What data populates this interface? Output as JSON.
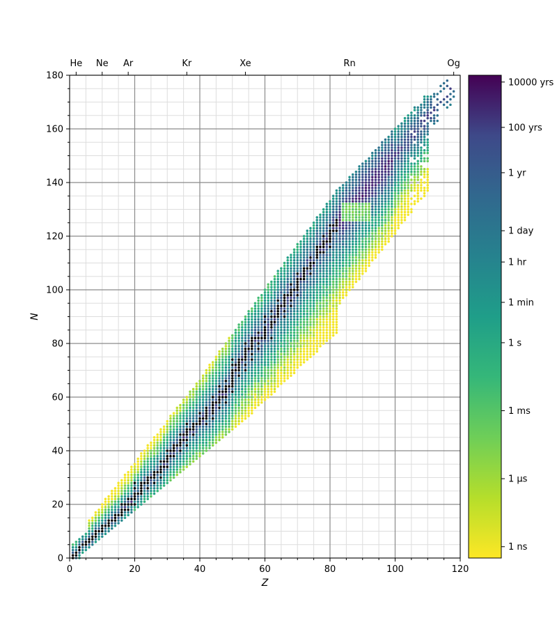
{
  "chart_data": {
    "type": "scatter",
    "title": "",
    "xlabel": "Z",
    "ylabel": "N",
    "xlim": [
      0,
      120
    ],
    "ylim": [
      0,
      180
    ],
    "x_ticks": [
      0,
      20,
      40,
      60,
      80,
      100,
      120
    ],
    "y_ticks": [
      0,
      20,
      40,
      60,
      80,
      100,
      120,
      140,
      160,
      180
    ],
    "x_minor_step": 5,
    "y_minor_step": 5,
    "grid": true,
    "top_axis": {
      "labels": [
        {
          "label": "He",
          "z": 2
        },
        {
          "label": "Ne",
          "z": 10
        },
        {
          "label": "Ar",
          "z": 18
        },
        {
          "label": "Kr",
          "z": 36
        },
        {
          "label": "Xe",
          "z": 54
        },
        {
          "label": "Rn",
          "z": 86
        },
        {
          "label": "Og",
          "z": 118
        }
      ]
    },
    "colorbar": {
      "colormap": "viridis_r",
      "scale": "log",
      "unit": "seconds",
      "range_log10": [
        -9.5,
        11.8
      ],
      "ticks": [
        {
          "label": "10000 yrs",
          "log10_seconds": 11.5
        },
        {
          "label": "100 yrs",
          "log10_seconds": 9.5
        },
        {
          "label": "1 yr",
          "log10_seconds": 7.5
        },
        {
          "label": "1 day",
          "log10_seconds": 4.94
        },
        {
          "label": "1 hr",
          "log10_seconds": 3.56
        },
        {
          "label": "1 min",
          "log10_seconds": 1.78
        },
        {
          "label": "1 s",
          "log10_seconds": 0
        },
        {
          "label": "1 ms",
          "log10_seconds": -3
        },
        {
          "label": "1 μs",
          "log10_seconds": -6
        },
        {
          "label": "1 ns",
          "log10_seconds": -9
        }
      ],
      "stable_color": "#000000"
    },
    "series": [
      {
        "description": "stable",
        "color": "#000000",
        "points_zn": [
          [
            1,
            0
          ],
          [
            1,
            1
          ],
          [
            2,
            1
          ],
          [
            2,
            2
          ],
          [
            3,
            3
          ],
          [
            3,
            4
          ],
          [
            4,
            5
          ],
          [
            5,
            5
          ],
          [
            5,
            6
          ],
          [
            6,
            6
          ],
          [
            6,
            7
          ],
          [
            7,
            7
          ],
          [
            7,
            8
          ],
          [
            8,
            8
          ],
          [
            8,
            9
          ],
          [
            8,
            10
          ],
          [
            9,
            10
          ],
          [
            10,
            10
          ],
          [
            10,
            11
          ],
          [
            10,
            12
          ],
          [
            11,
            12
          ],
          [
            12,
            12
          ],
          [
            12,
            13
          ],
          [
            12,
            14
          ],
          [
            13,
            14
          ],
          [
            14,
            14
          ],
          [
            14,
            15
          ],
          [
            14,
            16
          ],
          [
            15,
            16
          ],
          [
            16,
            16
          ],
          [
            16,
            17
          ],
          [
            16,
            18
          ],
          [
            16,
            20
          ],
          [
            17,
            18
          ],
          [
            17,
            20
          ],
          [
            18,
            18
          ],
          [
            18,
            20
          ],
          [
            18,
            22
          ],
          [
            19,
            20
          ],
          [
            19,
            22
          ],
          [
            20,
            20
          ],
          [
            20,
            22
          ],
          [
            20,
            23
          ],
          [
            20,
            24
          ],
          [
            20,
            26
          ],
          [
            20,
            28
          ],
          [
            21,
            24
          ],
          [
            22,
            24
          ],
          [
            22,
            25
          ],
          [
            22,
            26
          ],
          [
            22,
            27
          ],
          [
            22,
            28
          ],
          [
            23,
            28
          ],
          [
            24,
            26
          ],
          [
            24,
            28
          ],
          [
            24,
            29
          ],
          [
            24,
            30
          ],
          [
            25,
            30
          ],
          [
            26,
            28
          ],
          [
            26,
            30
          ],
          [
            26,
            31
          ],
          [
            26,
            32
          ],
          [
            27,
            32
          ],
          [
            28,
            30
          ],
          [
            28,
            32
          ],
          [
            28,
            33
          ],
          [
            28,
            34
          ],
          [
            28,
            36
          ],
          [
            29,
            34
          ],
          [
            29,
            36
          ],
          [
            30,
            34
          ],
          [
            30,
            36
          ],
          [
            30,
            37
          ],
          [
            30,
            38
          ],
          [
            30,
            40
          ],
          [
            31,
            38
          ],
          [
            31,
            40
          ],
          [
            32,
            38
          ],
          [
            32,
            40
          ],
          [
            32,
            41
          ],
          [
            32,
            42
          ],
          [
            33,
            42
          ],
          [
            34,
            40
          ],
          [
            34,
            42
          ],
          [
            34,
            43
          ],
          [
            34,
            44
          ],
          [
            34,
            46
          ],
          [
            35,
            44
          ],
          [
            35,
            46
          ],
          [
            36,
            42
          ],
          [
            36,
            44
          ],
          [
            36,
            46
          ],
          [
            36,
            47
          ],
          [
            36,
            48
          ],
          [
            36,
            50
          ],
          [
            37,
            48
          ],
          [
            38,
            46
          ],
          [
            38,
            48
          ],
          [
            38,
            49
          ],
          [
            38,
            50
          ],
          [
            39,
            50
          ],
          [
            40,
            50
          ],
          [
            40,
            51
          ],
          [
            40,
            52
          ],
          [
            40,
            54
          ],
          [
            41,
            52
          ],
          [
            42,
            50
          ],
          [
            42,
            52
          ],
          [
            42,
            53
          ],
          [
            42,
            54
          ],
          [
            42,
            55
          ],
          [
            42,
            56
          ],
          [
            44,
            52
          ],
          [
            44,
            54
          ],
          [
            44,
            55
          ],
          [
            44,
            56
          ],
          [
            44,
            57
          ],
          [
            44,
            58
          ],
          [
            44,
            60
          ],
          [
            45,
            58
          ],
          [
            46,
            56
          ],
          [
            46,
            58
          ],
          [
            46,
            59
          ],
          [
            46,
            60
          ],
          [
            46,
            62
          ],
          [
            46,
            64
          ],
          [
            47,
            60
          ],
          [
            47,
            62
          ],
          [
            48,
            58
          ],
          [
            48,
            60
          ],
          [
            48,
            62
          ],
          [
            48,
            63
          ],
          [
            48,
            64
          ],
          [
            48,
            66
          ],
          [
            49,
            64
          ],
          [
            50,
            62
          ],
          [
            50,
            64
          ],
          [
            50,
            65
          ],
          [
            50,
            66
          ],
          [
            50,
            67
          ],
          [
            50,
            68
          ],
          [
            50,
            69
          ],
          [
            50,
            70
          ],
          [
            50,
            72
          ],
          [
            50,
            74
          ],
          [
            51,
            70
          ],
          [
            51,
            72
          ],
          [
            52,
            68
          ],
          [
            52,
            70
          ],
          [
            52,
            71
          ],
          [
            52,
            72
          ],
          [
            52,
            73
          ],
          [
            52,
            74
          ],
          [
            53,
            74
          ],
          [
            54,
            70
          ],
          [
            54,
            72
          ],
          [
            54,
            74
          ],
          [
            54,
            75
          ],
          [
            54,
            76
          ],
          [
            54,
            77
          ],
          [
            54,
            78
          ],
          [
            54,
            80
          ],
          [
            55,
            78
          ],
          [
            56,
            74
          ],
          [
            56,
            76
          ],
          [
            56,
            78
          ],
          [
            56,
            79
          ],
          [
            56,
            80
          ],
          [
            56,
            81
          ],
          [
            56,
            82
          ],
          [
            57,
            82
          ],
          [
            58,
            78
          ],
          [
            58,
            80
          ],
          [
            58,
            82
          ],
          [
            58,
            84
          ],
          [
            59,
            82
          ],
          [
            60,
            82
          ],
          [
            60,
            83
          ],
          [
            60,
            84
          ],
          [
            60,
            85
          ],
          [
            60,
            86
          ],
          [
            60,
            88
          ],
          [
            60,
            90
          ],
          [
            62,
            82
          ],
          [
            62,
            86
          ],
          [
            62,
            87
          ],
          [
            62,
            88
          ],
          [
            62,
            90
          ],
          [
            62,
            92
          ],
          [
            63,
            88
          ],
          [
            63,
            90
          ],
          [
            64,
            90
          ],
          [
            64,
            91
          ],
          [
            64,
            92
          ],
          [
            64,
            93
          ],
          [
            64,
            94
          ],
          [
            64,
            96
          ],
          [
            65,
            94
          ],
          [
            66,
            90
          ],
          [
            66,
            92
          ],
          [
            66,
            94
          ],
          [
            66,
            95
          ],
          [
            66,
            96
          ],
          [
            66,
            97
          ],
          [
            66,
            98
          ],
          [
            67,
            98
          ],
          [
            68,
            94
          ],
          [
            68,
            96
          ],
          [
            68,
            98
          ],
          [
            68,
            99
          ],
          [
            68,
            100
          ],
          [
            68,
            102
          ],
          [
            69,
            100
          ],
          [
            70,
            98
          ],
          [
            70,
            100
          ],
          [
            70,
            101
          ],
          [
            70,
            102
          ],
          [
            70,
            103
          ],
          [
            70,
            104
          ],
          [
            70,
            106
          ],
          [
            71,
            104
          ],
          [
            72,
            104
          ],
          [
            72,
            105
          ],
          [
            72,
            106
          ],
          [
            72,
            107
          ],
          [
            72,
            108
          ],
          [
            73,
            108
          ],
          [
            74,
            106
          ],
          [
            74,
            108
          ],
          [
            74,
            109
          ],
          [
            74,
            110
          ],
          [
            74,
            112
          ],
          [
            75,
            110
          ],
          [
            76,
            112
          ],
          [
            76,
            113
          ],
          [
            76,
            114
          ],
          [
            76,
            115
          ],
          [
            76,
            116
          ],
          [
            77,
            114
          ],
          [
            77,
            116
          ],
          [
            78,
            114
          ],
          [
            78,
            116
          ],
          [
            78,
            117
          ],
          [
            78,
            118
          ],
          [
            78,
            120
          ],
          [
            79,
            118
          ],
          [
            80,
            116
          ],
          [
            80,
            118
          ],
          [
            80,
            119
          ],
          [
            80,
            120
          ],
          [
            80,
            121
          ],
          [
            80,
            122
          ],
          [
            80,
            124
          ],
          [
            81,
            122
          ],
          [
            81,
            124
          ],
          [
            82,
            122
          ],
          [
            82,
            124
          ],
          [
            82,
            125
          ],
          [
            82,
            126
          ]
        ]
      }
    ]
  }
}
